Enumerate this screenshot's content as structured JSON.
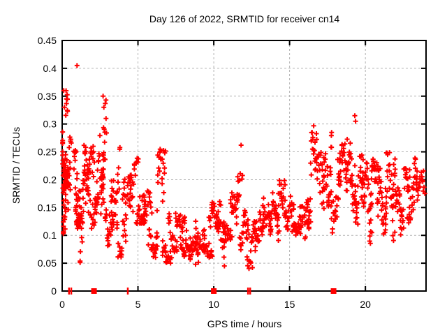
{
  "chart_data": {
    "type": "scatter",
    "title": "Day 126 of 2022, SRMTID for receiver cn14",
    "xlabel": "GPS time / hours",
    "ylabel": "SRMTID / TECUs",
    "xlim": [
      0,
      24
    ],
    "ylim": [
      0,
      0.45
    ],
    "xticks": [
      {
        "v": 0,
        "label": "0"
      },
      {
        "v": 5,
        "label": "5"
      },
      {
        "v": 10,
        "label": "10"
      },
      {
        "v": 15,
        "label": "15"
      },
      {
        "v": 20,
        "label": "20"
      }
    ],
    "yticks": [
      {
        "v": 0,
        "label": "0"
      },
      {
        "v": 0.05,
        "label": "0.05"
      },
      {
        "v": 0.1,
        "label": "0.1"
      },
      {
        "v": 0.15,
        "label": "0.15"
      },
      {
        "v": 0.2,
        "label": "0.2"
      },
      {
        "v": 0.25,
        "label": "0.25"
      },
      {
        "v": 0.3,
        "label": "0.3"
      },
      {
        "v": 0.35,
        "label": "0.35"
      },
      {
        "v": 0.4,
        "label": "0.4"
      },
      {
        "v": 0.45,
        "label": "0.45"
      }
    ],
    "grid": true,
    "legend": false,
    "background": "#ffffff",
    "axis_color": "#000000",
    "grid_color": "#b3b3b3",
    "marker": {
      "shape": "plus",
      "color": "#ff0000",
      "size": 7,
      "stroke_width": 2
    },
    "series": [
      {
        "name": "SRMTID",
        "representation": "arc_envelopes",
        "note": "dense scatter of ~1300 points; each arc = [hour_start, hour_end, y_min, y_max, n_points]",
        "arcs": [
          [
            0.0,
            0.35,
            0.1,
            0.36,
            40
          ],
          [
            0.05,
            0.5,
            0.14,
            0.31,
            30
          ],
          [
            0.1,
            0.6,
            0.18,
            0.28,
            20
          ],
          [
            0.8,
            1.15,
            0.1,
            0.4,
            32
          ],
          [
            0.9,
            1.5,
            0.12,
            0.3,
            25
          ],
          [
            1.2,
            1.8,
            0.05,
            0.22,
            25
          ],
          [
            1.5,
            2.1,
            0.12,
            0.26,
            28
          ],
          [
            1.9,
            2.4,
            0.06,
            0.17,
            18
          ],
          [
            2.2,
            2.7,
            0.12,
            0.28,
            22
          ],
          [
            2.55,
            2.9,
            0.14,
            0.35,
            26
          ],
          [
            2.8,
            3.4,
            0.08,
            0.22,
            24
          ],
          [
            3.2,
            3.8,
            0.1,
            0.26,
            24
          ],
          [
            3.6,
            4.2,
            0.06,
            0.17,
            20
          ],
          [
            4.0,
            4.6,
            0.1,
            0.21,
            24
          ],
          [
            4.4,
            5.0,
            0.12,
            0.24,
            20
          ],
          [
            4.9,
            5.5,
            0.12,
            0.23,
            26
          ],
          [
            5.3,
            5.9,
            0.08,
            0.18,
            20
          ],
          [
            5.7,
            6.3,
            0.06,
            0.14,
            20
          ],
          [
            6.2,
            6.8,
            0.07,
            0.26,
            26
          ],
          [
            6.6,
            7.2,
            0.05,
            0.13,
            22
          ],
          [
            7.0,
            7.6,
            0.07,
            0.15,
            22
          ],
          [
            7.5,
            8.1,
            0.06,
            0.14,
            22
          ],
          [
            7.9,
            8.5,
            0.07,
            0.16,
            22
          ],
          [
            8.4,
            9.0,
            0.05,
            0.13,
            22
          ],
          [
            8.8,
            9.4,
            0.07,
            0.15,
            22
          ],
          [
            9.3,
            9.9,
            0.06,
            0.14,
            24
          ],
          [
            9.7,
            10.3,
            0.08,
            0.16,
            26
          ],
          [
            10.2,
            10.8,
            0.05,
            0.17,
            24
          ],
          [
            10.6,
            11.2,
            0.08,
            0.15,
            22
          ],
          [
            11.1,
            11.7,
            0.07,
            0.18,
            24
          ],
          [
            11.55,
            11.9,
            0.19,
            0.27,
            6
          ],
          [
            11.7,
            12.3,
            0.06,
            0.15,
            24
          ],
          [
            12.2,
            12.8,
            0.04,
            0.13,
            20
          ],
          [
            12.7,
            13.3,
            0.07,
            0.15,
            24
          ],
          [
            13.2,
            13.8,
            0.08,
            0.17,
            24
          ],
          [
            13.7,
            14.3,
            0.09,
            0.18,
            24
          ],
          [
            14.2,
            14.8,
            0.08,
            0.2,
            24
          ],
          [
            14.7,
            15.3,
            0.1,
            0.18,
            24
          ],
          [
            15.2,
            15.8,
            0.1,
            0.21,
            24
          ],
          [
            15.7,
            16.3,
            0.09,
            0.23,
            24
          ],
          [
            16.2,
            16.8,
            0.11,
            0.3,
            28
          ],
          [
            16.7,
            17.3,
            0.1,
            0.25,
            24
          ],
          [
            17.2,
            17.8,
            0.12,
            0.3,
            28
          ],
          [
            17.7,
            18.3,
            0.1,
            0.24,
            24
          ],
          [
            18.2,
            18.8,
            0.12,
            0.27,
            28
          ],
          [
            18.75,
            19.35,
            0.13,
            0.32,
            32
          ],
          [
            19.3,
            19.9,
            0.12,
            0.3,
            28
          ],
          [
            19.8,
            20.4,
            0.08,
            0.26,
            28
          ],
          [
            20.3,
            20.9,
            0.07,
            0.24,
            28
          ],
          [
            20.8,
            21.4,
            0.1,
            0.26,
            28
          ],
          [
            21.3,
            21.9,
            0.09,
            0.25,
            28
          ],
          [
            21.8,
            22.4,
            0.1,
            0.24,
            26
          ],
          [
            22.3,
            22.9,
            0.08,
            0.22,
            26
          ],
          [
            22.8,
            23.4,
            0.12,
            0.25,
            24
          ],
          [
            23.3,
            23.9,
            0.14,
            0.23,
            22
          ]
        ],
        "highlight_points": [
          [
            0.98,
            0.405
          ],
          [
            0.1,
            0.36
          ],
          [
            0.15,
            0.33
          ],
          [
            2.7,
            0.35
          ],
          [
            2.75,
            0.33
          ],
          [
            11.8,
            0.262
          ],
          [
            19.3,
            0.315
          ],
          [
            19.35,
            0.305
          ],
          [
            12.55,
            0.042
          ],
          [
            10.7,
            0.045
          ],
          [
            8.8,
            0.048
          ]
        ]
      }
    ],
    "zero_markers": {
      "squares": [
        2.1,
        10.0,
        17.9
      ],
      "ticks": [
        0.45,
        0.6,
        4.33,
        12.26,
        12.4
      ]
    },
    "seed": 20220126
  }
}
